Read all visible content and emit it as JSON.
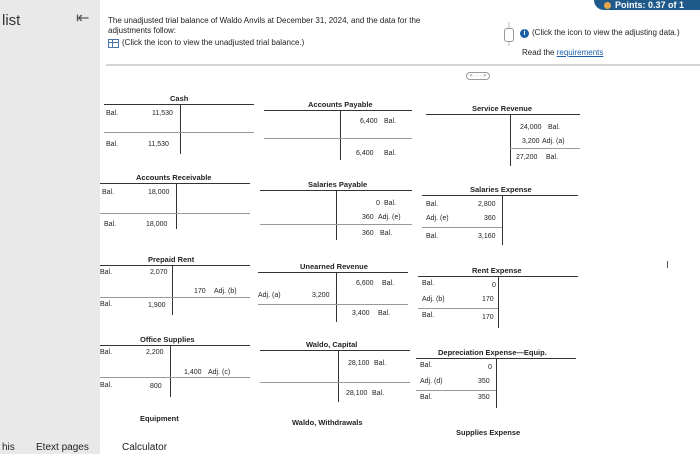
{
  "sidebar": {
    "label": "list"
  },
  "points": "Points: 0.37 of 1",
  "intro": {
    "text1": "The unadjusted trial balance of Waldo Anvils at December 31, 2024, and the data for the adjustments follow:",
    "text2": "(Click the icon to view the unadjusted trial balance.)"
  },
  "right_panel": {
    "icon_text": "(Click the icon to view the adjusting data.)",
    "read_prefix": "Read the ",
    "requirements": "requirements"
  },
  "more_label": "< · · · >",
  "accounts": {
    "cash": {
      "title": "Cash",
      "bal1_label": "Bal.",
      "bal1": "11,530",
      "bal2_label": "Bal.",
      "bal2": "11,530"
    },
    "ar": {
      "title": "Accounts Receivable",
      "bal1_label": "Bal.",
      "bal1": "18,000",
      "bal2_label": "Bal.",
      "bal2": "18,000"
    },
    "prepaid": {
      "title": "Prepaid Rent",
      "bal1_label": "Bal.",
      "bal1": "2,070",
      "adj": "170",
      "adj_label": "Adj. (b)",
      "bal2_label": "Bal.",
      "bal2": "1,900"
    },
    "office": {
      "title": "Office Supplies",
      "bal1_label": "Bal.",
      "bal1": "2,200",
      "adj": "1,400",
      "adj_label": "Adj. (c)",
      "bal2_label": "Bal.",
      "bal2": "800"
    },
    "ap": {
      "title": "Accounts Payable",
      "bal1": "6,400",
      "bal1_label": "Bal.",
      "bal2": "6,400",
      "bal2_label": "Bal."
    },
    "salp": {
      "title": "Salaries Payable",
      "r1": "0",
      "r1_label": "Bal.",
      "r2": "360",
      "r2_label": "Adj. (e)",
      "r3": "360",
      "r3_label": "Bal."
    },
    "unearned": {
      "title": "Unearned Revenue",
      "bal1": "6,600",
      "bal1_label": "Bal.",
      "adj_label": "Adj. (a)",
      "adj": "3,200",
      "bal2": "3,400",
      "bal2_label": "Bal."
    },
    "capital": {
      "title": "Waldo, Capital",
      "bal1": "28,100",
      "bal1_label": "Bal.",
      "bal2": "28,100",
      "bal2_label": "Bal."
    },
    "withdrawals": {
      "title": "Waldo, Withdrawals"
    },
    "service": {
      "title": "Service Revenue",
      "r1": "24,000",
      "r1_label": "Bal.",
      "r2": "3,200",
      "r2_label": "Adj. (a)",
      "r3": "27,200",
      "r3_label": "Bal."
    },
    "salexp": {
      "title": "Salaries Expense",
      "l1": "Bal.",
      "v1": "2,800",
      "l2": "Adj. (e)",
      "v2": "360",
      "l3": "Bal.",
      "v3": "3,160"
    },
    "rentexp": {
      "title": "Rent Expense",
      "l1": "Bal.",
      "v1": "0",
      "l2": "Adj. (b)",
      "v2": "170",
      "l3": "Bal.",
      "v3": "170"
    },
    "depexp": {
      "title": "Depreciation Expense—Equip.",
      "l1": "Bal.",
      "v1": "0",
      "l2": "Adj. (d)",
      "v2": "350",
      "l3": "Bal.",
      "v3": "350"
    },
    "supexp": {
      "title": "Supplies Expense"
    },
    "equipment": {
      "title": "Equipment"
    }
  },
  "bottom": {
    "left": "his",
    "etext": "Etext pages",
    "calc": "Calculator"
  }
}
